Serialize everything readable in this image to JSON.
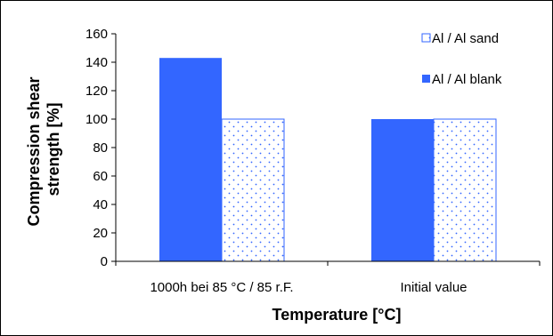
{
  "chart_data": {
    "type": "bar",
    "categories": [
      "1000h bei 85 °C / 85 r.F.",
      "Initial value"
    ],
    "series": [
      {
        "name": "Al / Al blank",
        "values": [
          143,
          100
        ],
        "color": "#3366ff",
        "pattern": "solid"
      },
      {
        "name": "Al / Al sand",
        "values": [
          100,
          100
        ],
        "color": "#3366ff",
        "pattern": "dotted"
      }
    ],
    "legend_order": [
      1,
      0
    ],
    "xlabel": "Temperature [°C]",
    "ylabel": "Compression shear strength [%]",
    "ylabel_lines": [
      "Compression shear",
      "strength [%]"
    ],
    "ylim": [
      0,
      160
    ],
    "yticks": [
      0,
      20,
      40,
      60,
      80,
      100,
      120,
      140,
      160
    ],
    "grid": false,
    "legend_position": "top-right"
  }
}
